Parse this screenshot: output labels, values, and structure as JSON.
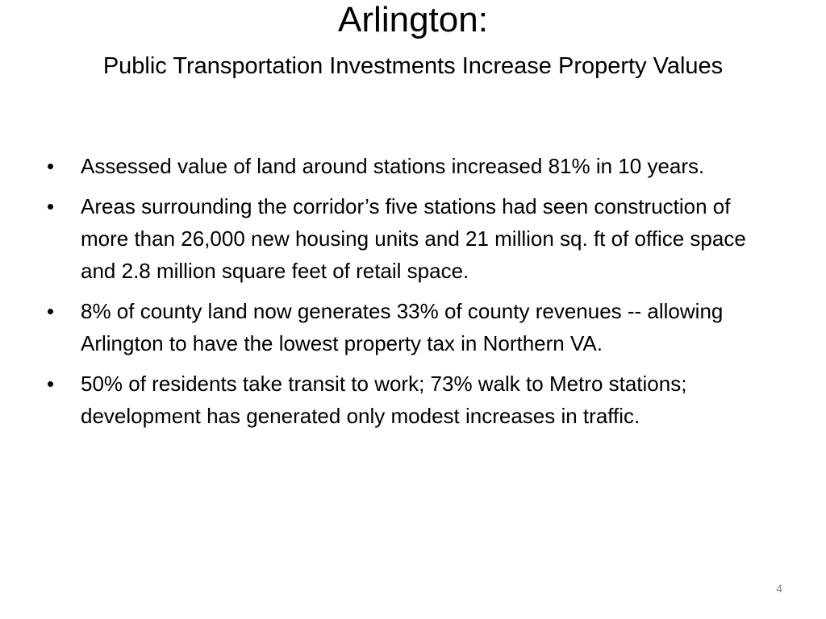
{
  "slide": {
    "title": "Arlington:",
    "subtitle": "Public Transportation Investments Increase Property Values",
    "bullet_marker": "•",
    "bullets": [
      "Assessed value of land around stations increased 81% in 10 years.",
      "Areas surrounding the corridor’s five stations had seen construction of more than 26,000 new housing units and 21 million sq. ft of office space and 2.8 million square feet of retail space.",
      "8% of county land now generates 33% of county revenues -- allowing Arlington to have the lowest property tax in Northern VA.",
      "50% of residents take transit to work; 73% walk to Metro stations; development has generated only modest increases in traffic."
    ],
    "page_number": "4"
  }
}
